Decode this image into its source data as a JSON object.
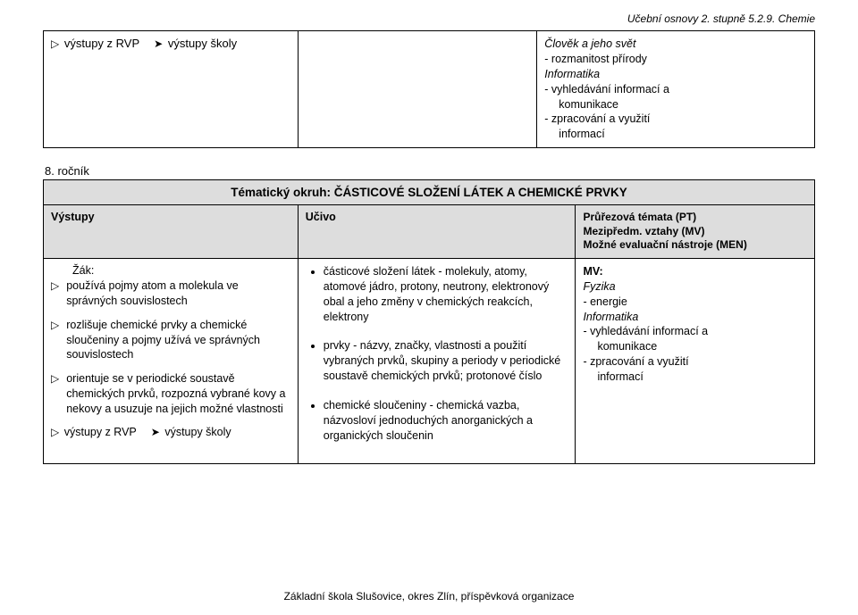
{
  "header_right": "Učební osnovy 2. stupně 5.2.9. Chemie",
  "top": {
    "rvp_label": "výstupy z RVP",
    "skoly_label": "výstupy školy",
    "col3": {
      "line1_italic": "Člověk a jeho svět",
      "line2": "- rozmanitost přírody",
      "line3_italic": "Informatika",
      "line4": "- vyhledávání informací  a",
      "line5_indent": "komunikace",
      "line6": "- zpracování a využití",
      "line7_indent": "informací"
    }
  },
  "grade_label": "8. ročník",
  "section_title": "Tématický okruh: ČÁSTICOVÉ SLOŽENÍ LÁTEK A CHEMICKÉ PRVKY",
  "headers": {
    "h1": "Výstupy",
    "h2": "Učivo",
    "h3_l1": "Průřezová témata (PT)",
    "h3_l2": "Mezipředm. vztahy (MV)",
    "h3_l3": "Možné evaluační nástroje (MEN)"
  },
  "vystupy": {
    "zak": "Žák:",
    "item1": "používá pojmy atom a molekula ve správných souvislostech",
    "item2": "rozlišuje chemické prvky a chemické sloučeniny a pojmy užívá ve správných souvislostech",
    "item3": "orientuje se v periodické soustavě chemických prvků, rozpozná vybrané kovy a nekovy a usuzuje na jejich možné vlastnosti",
    "rvp_label": "výstupy z RVP",
    "skoly_label": "výstupy školy"
  },
  "ucivo": {
    "b1": "částicové složení látek - molekuly, atomy, atomové jádro, protony, neutrony, elektronový obal a jeho změny v chemických reakcích, elektrony",
    "b2": "prvky - názvy, značky, vlastnosti a použití vybraných prvků, skupiny a periody v periodické soustavě chemických prvků; protonové číslo",
    "b3": "chemické sloučeniny - chemická vazba, názvosloví jednoduchých anorganických a organických sloučenin"
  },
  "mv": {
    "title": "MV:",
    "line1_italic": "Fyzika",
    "line2": "- energie",
    "line3_italic": "Informatika",
    "line4": "- vyhledávání informací  a",
    "line5_indent": "komunikace",
    "line6": "- zpracování a využití",
    "line7_indent": "informací"
  },
  "footer": "Základní škola Slušovice, okres Zlín, příspěvková organizace",
  "colors": {
    "header_bg": "#dddddd"
  }
}
